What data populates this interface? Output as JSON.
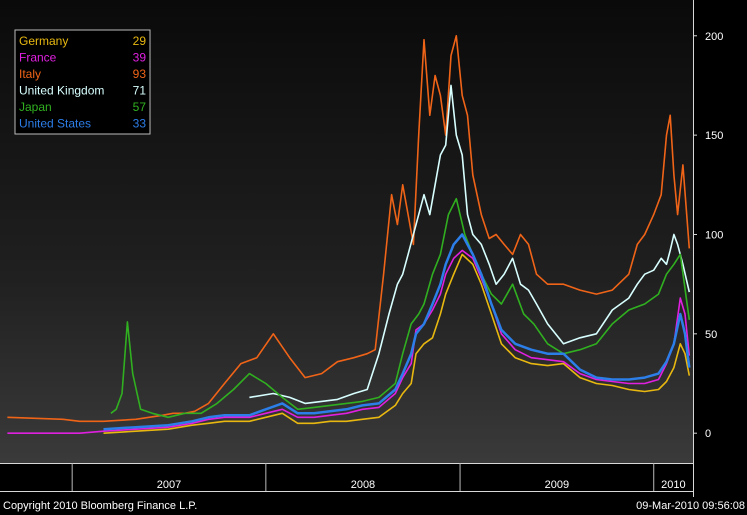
{
  "chart_data": {
    "type": "line",
    "title": "",
    "xlabel": "",
    "ylabel": "",
    "ylim": [
      -15,
      218
    ],
    "y_ticks": [
      0,
      50,
      100,
      150,
      200
    ],
    "y_axis_side": "right",
    "grid": false,
    "legend_position": "top-left",
    "x_year_labels": [
      "2007",
      "2008",
      "2009",
      "2010"
    ],
    "series": [
      {
        "name": "Germany",
        "last_value": "29",
        "color": "#e8b810",
        "x": [
          "2006-09-01",
          "2006-12-15",
          "2007-01-15",
          "2007-03-01",
          "2007-05-01",
          "2007-07-01",
          "2007-08-15",
          "2007-09-15",
          "2007-10-15",
          "2007-12-01",
          "2008-01-01",
          "2008-02-01",
          "2008-03-01",
          "2008-04-01",
          "2008-05-01",
          "2008-06-01",
          "2008-07-01",
          "2008-08-01",
          "2008-09-01",
          "2008-09-15",
          "2008-10-01",
          "2008-10-10",
          "2008-10-25",
          "2008-11-10",
          "2008-11-25",
          "2008-12-05",
          "2008-12-20",
          "2009-01-05",
          "2009-01-25",
          "2009-02-10",
          "2009-03-01",
          "2009-03-20",
          "2009-04-15",
          "2009-05-15",
          "2009-06-15",
          "2009-07-15",
          "2009-08-15",
          "2009-09-15",
          "2009-10-15",
          "2009-11-15",
          "2009-12-15",
          "2010-01-10",
          "2010-01-25",
          "2010-02-08",
          "2010-02-20",
          "2010-03-01",
          "2010-03-09"
        ],
        "values": [
          null,
          null,
          null,
          0,
          1,
          2,
          4,
          5,
          6,
          6,
          8,
          10,
          5,
          5,
          6,
          6,
          7,
          8,
          14,
          20,
          25,
          40,
          45,
          48,
          60,
          70,
          80,
          90,
          85,
          75,
          60,
          45,
          38,
          35,
          34,
          35,
          28,
          25,
          24,
          22,
          21,
          22,
          26,
          33,
          45,
          40,
          29
        ]
      },
      {
        "name": "France",
        "last_value": "39",
        "color": "#e020e0",
        "x": [
          "2006-09-01",
          "2006-12-15",
          "2007-01-15",
          "2007-03-01",
          "2007-05-01",
          "2007-07-01",
          "2007-08-15",
          "2007-09-15",
          "2007-10-15",
          "2007-12-01",
          "2008-01-01",
          "2008-02-01",
          "2008-03-01",
          "2008-04-01",
          "2008-05-01",
          "2008-06-01",
          "2008-07-01",
          "2008-08-01",
          "2008-09-01",
          "2008-09-15",
          "2008-10-01",
          "2008-10-10",
          "2008-10-25",
          "2008-11-10",
          "2008-11-25",
          "2008-12-05",
          "2008-12-20",
          "2009-01-05",
          "2009-01-25",
          "2009-02-10",
          "2009-03-01",
          "2009-03-20",
          "2009-04-15",
          "2009-05-15",
          "2009-06-15",
          "2009-07-15",
          "2009-08-15",
          "2009-09-15",
          "2009-10-15",
          "2009-11-15",
          "2009-12-15",
          "2010-01-10",
          "2010-01-25",
          "2010-02-08",
          "2010-02-20",
          "2010-03-01",
          "2010-03-09"
        ],
        "values": [
          0,
          0,
          0,
          1,
          2,
          3,
          5,
          7,
          8,
          8,
          10,
          12,
          8,
          8,
          9,
          10,
          12,
          13,
          20,
          28,
          35,
          52,
          55,
          62,
          70,
          80,
          88,
          92,
          88,
          78,
          65,
          50,
          42,
          38,
          37,
          36,
          30,
          27,
          26,
          25,
          25,
          27,
          35,
          45,
          68,
          60,
          39
        ]
      },
      {
        "name": "Italy",
        "last_value": "93",
        "color": "#f06418",
        "x": [
          "2006-09-01",
          "2006-12-15",
          "2007-01-15",
          "2007-03-01",
          "2007-05-01",
          "2007-06-20",
          "2007-07-10",
          "2007-08-01",
          "2007-08-20",
          "2007-09-15",
          "2007-10-15",
          "2007-11-15",
          "2007-12-15",
          "2008-01-15",
          "2008-02-15",
          "2008-03-15",
          "2008-04-15",
          "2008-05-15",
          "2008-06-15",
          "2008-07-10",
          "2008-07-25",
          "2008-08-10",
          "2008-08-25",
          "2008-09-05",
          "2008-09-15",
          "2008-09-25",
          "2008-10-05",
          "2008-10-15",
          "2008-10-25",
          "2008-11-05",
          "2008-11-15",
          "2008-11-25",
          "2008-12-05",
          "2008-12-15",
          "2008-12-25",
          "2009-01-05",
          "2009-01-15",
          "2009-01-25",
          "2009-02-10",
          "2009-02-25",
          "2009-03-10",
          "2009-03-25",
          "2009-04-10",
          "2009-04-25",
          "2009-05-10",
          "2009-05-25",
          "2009-06-15",
          "2009-07-15",
          "2009-08-15",
          "2009-09-15",
          "2009-10-15",
          "2009-11-15",
          "2009-12-01",
          "2009-12-15",
          "2010-01-01",
          "2010-01-15",
          "2010-01-25",
          "2010-02-01",
          "2010-02-08",
          "2010-02-15",
          "2010-02-25",
          "2010-03-09"
        ],
        "values": [
          8,
          7,
          6,
          6,
          7,
          9,
          10,
          10,
          11,
          15,
          25,
          35,
          38,
          50,
          38,
          28,
          30,
          36,
          38,
          40,
          42,
          80,
          120,
          105,
          125,
          110,
          95,
          150,
          198,
          160,
          180,
          170,
          150,
          190,
          200,
          170,
          160,
          130,
          110,
          98,
          100,
          95,
          90,
          100,
          95,
          80,
          75,
          75,
          72,
          70,
          72,
          80,
          95,
          100,
          110,
          120,
          150,
          160,
          130,
          110,
          135,
          93
        ]
      },
      {
        "name": "United Kingdom",
        "last_value": "71",
        "color": "#d8ffff",
        "x": [
          "2007-12-01",
          "2008-01-15",
          "2008-02-15",
          "2008-03-15",
          "2008-04-15",
          "2008-05-15",
          "2008-06-15",
          "2008-07-10",
          "2008-08-01",
          "2008-08-20",
          "2008-09-05",
          "2008-09-15",
          "2008-09-25",
          "2008-10-05",
          "2008-10-15",
          "2008-10-25",
          "2008-11-05",
          "2008-11-15",
          "2008-11-25",
          "2008-12-05",
          "2008-12-15",
          "2008-12-25",
          "2009-01-05",
          "2009-01-15",
          "2009-01-25",
          "2009-02-10",
          "2009-02-25",
          "2009-03-10",
          "2009-03-25",
          "2009-04-10",
          "2009-04-25",
          "2009-05-10",
          "2009-05-25",
          "2009-06-15",
          "2009-07-15",
          "2009-08-15",
          "2009-09-15",
          "2009-10-15",
          "2009-11-15",
          "2009-12-01",
          "2009-12-15",
          "2010-01-01",
          "2010-01-15",
          "2010-01-25",
          "2010-02-01",
          "2010-02-08",
          "2010-02-15",
          "2010-02-25",
          "2010-03-09"
        ],
        "values": [
          18,
          20,
          18,
          15,
          16,
          17,
          20,
          22,
          40,
          60,
          75,
          80,
          90,
          100,
          110,
          120,
          110,
          125,
          140,
          145,
          175,
          150,
          140,
          110,
          100,
          95,
          85,
          75,
          80,
          88,
          75,
          72,
          65,
          55,
          45,
          48,
          50,
          62,
          68,
          75,
          80,
          82,
          88,
          85,
          92,
          100,
          95,
          85,
          71
        ]
      },
      {
        "name": "Japan",
        "last_value": "57",
        "color": "#30b020",
        "x": [
          "2007-03-15",
          "2007-03-25",
          "2007-04-05",
          "2007-04-15",
          "2007-04-25",
          "2007-05-10",
          "2007-06-01",
          "2007-07-01",
          "2007-08-01",
          "2007-09-01",
          "2007-10-01",
          "2007-11-01",
          "2007-12-01",
          "2008-01-01",
          "2008-02-01",
          "2008-03-01",
          "2008-04-01",
          "2008-05-01",
          "2008-06-01",
          "2008-07-01",
          "2008-08-01",
          "2008-09-01",
          "2008-09-15",
          "2008-10-01",
          "2008-10-15",
          "2008-10-25",
          "2008-11-10",
          "2008-11-25",
          "2008-12-10",
          "2008-12-25",
          "2009-01-10",
          "2009-01-25",
          "2009-02-10",
          "2009-03-01",
          "2009-03-20",
          "2009-04-10",
          "2009-05-01",
          "2009-05-20",
          "2009-06-15",
          "2009-07-15",
          "2009-08-15",
          "2009-09-15",
          "2009-10-15",
          "2009-11-15",
          "2009-12-15",
          "2010-01-10",
          "2010-01-25",
          "2010-02-08",
          "2010-02-20",
          "2010-03-09"
        ],
        "values": [
          10,
          12,
          20,
          56,
          30,
          12,
          10,
          8,
          10,
          10,
          15,
          22,
          30,
          25,
          18,
          12,
          13,
          14,
          15,
          16,
          18,
          25,
          40,
          55,
          60,
          65,
          80,
          90,
          110,
          118,
          100,
          90,
          80,
          70,
          65,
          75,
          60,
          55,
          45,
          40,
          42,
          45,
          55,
          62,
          65,
          70,
          80,
          85,
          90,
          57
        ]
      },
      {
        "name": "United States",
        "last_value": "33",
        "color": "#2c7ee8",
        "x": [
          "2007-03-01",
          "2007-05-01",
          "2007-07-01",
          "2007-08-15",
          "2007-09-15",
          "2007-10-15",
          "2007-12-01",
          "2008-01-01",
          "2008-02-01",
          "2008-03-01",
          "2008-04-01",
          "2008-05-01",
          "2008-06-01",
          "2008-07-01",
          "2008-08-01",
          "2008-09-01",
          "2008-09-15",
          "2008-10-01",
          "2008-10-10",
          "2008-10-25",
          "2008-11-10",
          "2008-11-25",
          "2008-12-05",
          "2008-12-20",
          "2009-01-05",
          "2009-01-25",
          "2009-02-10",
          "2009-03-01",
          "2009-03-20",
          "2009-04-15",
          "2009-05-15",
          "2009-06-15",
          "2009-07-15",
          "2009-08-15",
          "2009-09-15",
          "2009-10-15",
          "2009-11-15",
          "2009-12-15",
          "2010-01-10",
          "2010-01-25",
          "2010-02-08",
          "2010-02-20",
          "2010-03-01",
          "2010-03-09"
        ],
        "values": [
          2,
          3,
          4,
          6,
          8,
          9,
          9,
          12,
          15,
          10,
          10,
          11,
          12,
          14,
          15,
          22,
          30,
          40,
          50,
          55,
          65,
          75,
          85,
          95,
          100,
          90,
          80,
          65,
          52,
          45,
          42,
          40,
          40,
          32,
          28,
          27,
          27,
          28,
          30,
          36,
          45,
          60,
          50,
          33
        ]
      }
    ]
  },
  "footer": {
    "copyright": "Copyright 2010 Bloomberg Finance L.P.",
    "timestamp": "09-Mar-2010 09:56:08"
  }
}
